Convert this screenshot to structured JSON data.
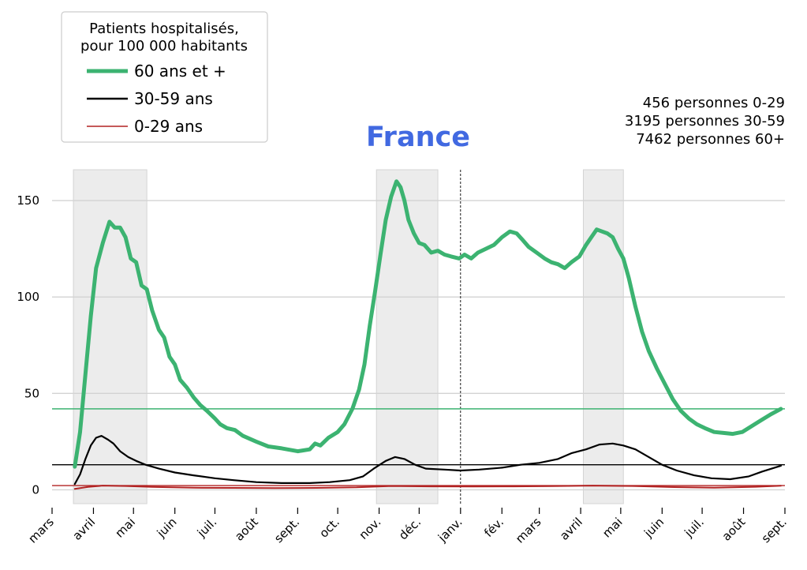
{
  "chart_data": {
    "type": "line",
    "title": "France",
    "title_color": "#4169e1",
    "xlabel": "",
    "ylabel": "",
    "ylim": [
      -8,
      166
    ],
    "yticks": [
      0,
      50,
      100,
      150
    ],
    "x_start": "2020-03-01",
    "x_end": "2021-09-01",
    "xticks": [
      {
        "date": "2020-03-01",
        "label": "mars"
      },
      {
        "date": "2020-04-01",
        "label": "avril"
      },
      {
        "date": "2020-05-01",
        "label": "mai"
      },
      {
        "date": "2020-06-01",
        "label": "juin"
      },
      {
        "date": "2020-07-01",
        "label": "juil."
      },
      {
        "date": "2020-08-01",
        "label": "août"
      },
      {
        "date": "2020-09-01",
        "label": "sept."
      },
      {
        "date": "2020-10-01",
        "label": "oct."
      },
      {
        "date": "2020-11-01",
        "label": "nov."
      },
      {
        "date": "2020-12-01",
        "label": "déc."
      },
      {
        "date": "2021-01-01",
        "label": "janv."
      },
      {
        "date": "2021-02-01",
        "label": "fév."
      },
      {
        "date": "2021-03-01",
        "label": "mars"
      },
      {
        "date": "2021-04-01",
        "label": "avril"
      },
      {
        "date": "2021-05-01",
        "label": "mai"
      },
      {
        "date": "2021-06-01",
        "label": "juin"
      },
      {
        "date": "2021-07-01",
        "label": "juil."
      },
      {
        "date": "2021-08-01",
        "label": "août"
      },
      {
        "date": "2021-09-01",
        "label": "sept."
      }
    ],
    "grid": "horizontal",
    "shaded_periods": [
      {
        "start": "2020-03-17",
        "end": "2020-05-11"
      },
      {
        "start": "2020-10-30",
        "end": "2020-12-15"
      },
      {
        "start": "2021-04-03",
        "end": "2021-05-03"
      }
    ],
    "vline_date": "2021-01-01",
    "legend": {
      "placement": "top-left",
      "title": "Patients hospitalisés,\npour 100 000 habitants",
      "entries": [
        "60 ans et +",
        "30-59 ans",
        "0-29 ans"
      ]
    },
    "annotations": [
      "456 personnes 0-29",
      "3195 personnes 30-59",
      "7462 personnes 60+"
    ],
    "series": [
      {
        "name": "60 ans et +",
        "color": "#3cb371",
        "width": 5,
        "hline": 42,
        "points": [
          [
            "2020-03-18",
            12
          ],
          [
            "2020-03-22",
            30
          ],
          [
            "2020-03-26",
            60
          ],
          [
            "2020-03-30",
            90
          ],
          [
            "2020-04-03",
            115
          ],
          [
            "2020-04-08",
            128
          ],
          [
            "2020-04-13",
            139
          ],
          [
            "2020-04-17",
            136
          ],
          [
            "2020-04-21",
            136
          ],
          [
            "2020-04-25",
            131
          ],
          [
            "2020-04-29",
            120
          ],
          [
            "2020-05-03",
            118
          ],
          [
            "2020-05-07",
            106
          ],
          [
            "2020-05-11",
            104
          ],
          [
            "2020-05-15",
            93
          ],
          [
            "2020-05-20",
            83
          ],
          [
            "2020-05-24",
            79
          ],
          [
            "2020-05-28",
            69
          ],
          [
            "2020-06-01",
            65
          ],
          [
            "2020-06-05",
            57
          ],
          [
            "2020-06-10",
            53
          ],
          [
            "2020-06-15",
            48
          ],
          [
            "2020-06-20",
            44
          ],
          [
            "2020-06-25",
            41
          ],
          [
            "2020-07-01",
            37
          ],
          [
            "2020-07-05",
            34
          ],
          [
            "2020-07-10",
            32
          ],
          [
            "2020-07-16",
            31
          ],
          [
            "2020-07-22",
            28
          ],
          [
            "2020-08-01",
            25
          ],
          [
            "2020-08-10",
            22.5
          ],
          [
            "2020-08-20",
            21.5
          ],
          [
            "2020-09-01",
            20
          ],
          [
            "2020-09-10",
            21
          ],
          [
            "2020-09-14",
            24
          ],
          [
            "2020-09-18",
            23
          ],
          [
            "2020-09-24",
            27
          ],
          [
            "2020-10-01",
            30
          ],
          [
            "2020-10-06",
            34
          ],
          [
            "2020-10-12",
            42
          ],
          [
            "2020-10-17",
            52
          ],
          [
            "2020-10-21",
            65
          ],
          [
            "2020-10-25",
            85
          ],
          [
            "2020-10-29",
            103
          ],
          [
            "2020-11-02",
            122
          ],
          [
            "2020-11-06",
            140
          ],
          [
            "2020-11-10",
            152
          ],
          [
            "2020-11-14",
            160
          ],
          [
            "2020-11-17",
            157
          ],
          [
            "2020-11-20",
            150
          ],
          [
            "2020-11-23",
            140
          ],
          [
            "2020-11-27",
            133
          ],
          [
            "2020-12-01",
            128
          ],
          [
            "2020-12-05",
            127
          ],
          [
            "2020-12-10",
            123
          ],
          [
            "2020-12-15",
            124
          ],
          [
            "2020-12-20",
            122
          ],
          [
            "2020-12-25",
            121
          ],
          [
            "2020-12-31",
            120
          ],
          [
            "2021-01-04",
            122
          ],
          [
            "2021-01-09",
            120
          ],
          [
            "2021-01-14",
            123
          ],
          [
            "2021-01-20",
            125
          ],
          [
            "2021-01-26",
            127
          ],
          [
            "2021-02-01",
            131
          ],
          [
            "2021-02-07",
            134
          ],
          [
            "2021-02-12",
            133
          ],
          [
            "2021-02-16",
            130
          ],
          [
            "2021-02-21",
            126
          ],
          [
            "2021-02-27",
            123
          ],
          [
            "2021-03-05",
            120
          ],
          [
            "2021-03-10",
            118
          ],
          [
            "2021-03-15",
            117
          ],
          [
            "2021-03-20",
            115
          ],
          [
            "2021-03-25",
            118
          ],
          [
            "2021-03-31",
            121
          ],
          [
            "2021-04-05",
            127
          ],
          [
            "2021-04-09",
            131
          ],
          [
            "2021-04-13",
            135
          ],
          [
            "2021-04-17",
            134
          ],
          [
            "2021-04-21",
            133
          ],
          [
            "2021-04-25",
            131
          ],
          [
            "2021-04-29",
            125
          ],
          [
            "2021-05-03",
            120
          ],
          [
            "2021-05-07",
            110
          ],
          [
            "2021-05-12",
            95
          ],
          [
            "2021-05-17",
            82
          ],
          [
            "2021-05-22",
            72
          ],
          [
            "2021-05-28",
            63
          ],
          [
            "2021-06-03",
            55
          ],
          [
            "2021-06-09",
            47
          ],
          [
            "2021-06-15",
            41
          ],
          [
            "2021-06-21",
            37
          ],
          [
            "2021-06-27",
            34
          ],
          [
            "2021-07-03",
            32
          ],
          [
            "2021-07-10",
            30
          ],
          [
            "2021-07-17",
            29.5
          ],
          [
            "2021-07-24",
            29
          ],
          [
            "2021-07-31",
            30
          ],
          [
            "2021-08-07",
            33
          ],
          [
            "2021-08-14",
            36
          ],
          [
            "2021-08-21",
            39
          ],
          [
            "2021-08-29",
            42
          ]
        ]
      },
      {
        "name": "30-59 ans",
        "color": "#000000",
        "width": 2.2,
        "hline": 13,
        "points": [
          [
            "2020-03-18",
            3
          ],
          [
            "2020-03-22",
            8
          ],
          [
            "2020-03-26",
            16
          ],
          [
            "2020-03-30",
            23
          ],
          [
            "2020-04-03",
            27
          ],
          [
            "2020-04-07",
            28
          ],
          [
            "2020-04-12",
            26
          ],
          [
            "2020-04-16",
            24
          ],
          [
            "2020-04-21",
            20
          ],
          [
            "2020-04-27",
            17
          ],
          [
            "2020-05-03",
            15
          ],
          [
            "2020-05-10",
            13
          ],
          [
            "2020-05-20",
            11
          ],
          [
            "2020-06-01",
            9
          ],
          [
            "2020-06-15",
            7.5
          ],
          [
            "2020-07-01",
            6
          ],
          [
            "2020-07-15",
            5
          ],
          [
            "2020-08-01",
            4
          ],
          [
            "2020-08-20",
            3.5
          ],
          [
            "2020-09-10",
            3.5
          ],
          [
            "2020-09-25",
            4
          ],
          [
            "2020-10-10",
            5
          ],
          [
            "2020-10-20",
            7
          ],
          [
            "2020-10-28",
            11
          ],
          [
            "2020-11-06",
            15
          ],
          [
            "2020-11-13",
            17
          ],
          [
            "2020-11-20",
            16
          ],
          [
            "2020-11-28",
            13
          ],
          [
            "2020-12-06",
            11
          ],
          [
            "2020-12-20",
            10.5
          ],
          [
            "2021-01-01",
            10
          ],
          [
            "2021-01-15",
            10.5
          ],
          [
            "2021-02-01",
            11.5
          ],
          [
            "2021-02-15",
            13
          ],
          [
            "2021-03-01",
            14
          ],
          [
            "2021-03-15",
            16
          ],
          [
            "2021-03-25",
            19
          ],
          [
            "2021-04-05",
            21
          ],
          [
            "2021-04-15",
            23.5
          ],
          [
            "2021-04-25",
            24
          ],
          [
            "2021-05-03",
            23
          ],
          [
            "2021-05-12",
            21
          ],
          [
            "2021-05-22",
            17
          ],
          [
            "2021-06-01",
            13
          ],
          [
            "2021-06-12",
            10
          ],
          [
            "2021-06-25",
            7.5
          ],
          [
            "2021-07-08",
            6
          ],
          [
            "2021-07-22",
            5.5
          ],
          [
            "2021-08-05",
            7
          ],
          [
            "2021-08-15",
            9.5
          ],
          [
            "2021-08-29",
            12.5
          ]
        ]
      },
      {
        "name": "0-29 ans",
        "color": "#b22222",
        "width": 2,
        "hline": 2.2,
        "points": [
          [
            "2020-03-18",
            0.5
          ],
          [
            "2020-03-28",
            1.5
          ],
          [
            "2020-04-08",
            2.2
          ],
          [
            "2020-04-25",
            2
          ],
          [
            "2020-05-15",
            1.5
          ],
          [
            "2020-06-15",
            1.1
          ],
          [
            "2020-07-15",
            1.0
          ],
          [
            "2020-08-15",
            0.9
          ],
          [
            "2020-09-15",
            1.0
          ],
          [
            "2020-10-15",
            1.3
          ],
          [
            "2020-11-10",
            2.0
          ],
          [
            "2020-12-10",
            1.8
          ],
          [
            "2021-01-10",
            1.7
          ],
          [
            "2021-02-10",
            1.8
          ],
          [
            "2021-03-10",
            1.9
          ],
          [
            "2021-04-10",
            2.2
          ],
          [
            "2021-05-10",
            2.0
          ],
          [
            "2021-06-10",
            1.4
          ],
          [
            "2021-07-10",
            1.1
          ],
          [
            "2021-08-10",
            1.6
          ],
          [
            "2021-08-29",
            2.1
          ]
        ]
      }
    ]
  }
}
